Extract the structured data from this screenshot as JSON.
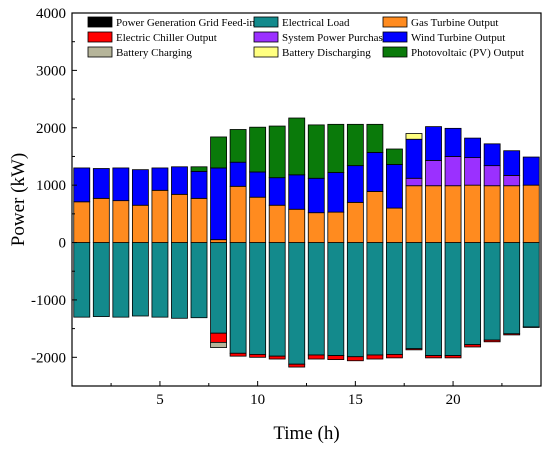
{
  "chart_data": {
    "type": "bar",
    "stacked": true,
    "xlabel": "Time (h)",
    "ylabel": "Power (kW)",
    "xlim": [
      0.5,
      24.5
    ],
    "ylim": [
      -2500,
      4000
    ],
    "x_ticks": [
      5,
      10,
      15,
      20
    ],
    "y_ticks": [
      -2000,
      -1000,
      0,
      1000,
      2000,
      3000,
      4000
    ],
    "x_tick_labels": [
      "5",
      "10",
      "15",
      "20"
    ],
    "y_tick_labels": [
      "-2000",
      "-1000",
      "0",
      "1000",
      "2000",
      "3000",
      "4000"
    ],
    "grid": false,
    "legend_position": "top",
    "x": [
      1,
      2,
      3,
      4,
      5,
      6,
      7,
      8,
      9,
      10,
      11,
      12,
      13,
      14,
      15,
      16,
      17,
      18,
      19,
      20,
      21,
      22,
      23,
      24
    ],
    "series": [
      {
        "name": "Power Generation Grid Feed-in",
        "color": "#000000",
        "values": [
          0,
          0,
          0,
          0,
          0,
          0,
          0,
          0,
          0,
          0,
          0,
          0,
          0,
          0,
          0,
          0,
          0,
          0,
          0,
          0,
          0,
          0,
          0,
          0
        ]
      },
      {
        "name": "Electrical Load",
        "color": "#138A8C",
        "values": [
          -1300,
          -1290,
          -1300,
          -1280,
          -1300,
          -1320,
          -1310,
          -1580,
          -1930,
          -1950,
          -1980,
          -2120,
          -1960,
          -1970,
          -1990,
          -1960,
          -1950,
          -1850,
          -1970,
          -1970,
          -1780,
          -1700,
          -1590,
          -1470
        ]
      },
      {
        "name": "Gas Turbine Output",
        "color": "#FF8B1F",
        "values": [
          710,
          770,
          730,
          650,
          910,
          840,
          770,
          50,
          980,
          790,
          650,
          580,
          520,
          530,
          700,
          890,
          600,
          990,
          990,
          990,
          1000,
          990,
          990,
          1000
        ]
      },
      {
        "name": "Electric Chiller Output",
        "color": "#FF0000",
        "values": [
          0,
          0,
          0,
          0,
          0,
          0,
          0,
          -160,
          -50,
          -50,
          -50,
          -50,
          -70,
          -70,
          -70,
          -70,
          -60,
          -20,
          -40,
          -40,
          -40,
          -30,
          -20,
          -10
        ]
      },
      {
        "name": "System Power Purchase",
        "color": "#9B30FF",
        "values": [
          0,
          0,
          0,
          0,
          0,
          0,
          0,
          0,
          0,
          0,
          0,
          0,
          0,
          0,
          0,
          0,
          0,
          130,
          440,
          510,
          480,
          350,
          180,
          0
        ]
      },
      {
        "name": "Wind Turbine Output",
        "color": "#0000FF",
        "values": [
          590,
          520,
          570,
          620,
          390,
          480,
          470,
          1250,
          420,
          440,
          480,
          600,
          600,
          690,
          640,
          680,
          760,
          680,
          590,
          490,
          340,
          380,
          430,
          490
        ]
      },
      {
        "name": "Battery Charging",
        "color": "#B6B59A",
        "values": [
          0,
          0,
          0,
          0,
          0,
          0,
          0,
          -90,
          0,
          0,
          0,
          0,
          0,
          0,
          0,
          0,
          0,
          0,
          0,
          0,
          0,
          0,
          0,
          0
        ]
      },
      {
        "name": "Battery Discharging",
        "color": "#FFFF80",
        "values": [
          0,
          0,
          0,
          0,
          0,
          0,
          0,
          0,
          0,
          0,
          0,
          0,
          0,
          0,
          0,
          0,
          0,
          100,
          0,
          0,
          0,
          0,
          0,
          0
        ]
      },
      {
        "name": "Photovoltaic (PV) Output",
        "color": "#0A7A0A",
        "values": [
          0,
          0,
          0,
          0,
          0,
          0,
          80,
          540,
          570,
          780,
          900,
          990,
          930,
          840,
          720,
          490,
          270,
          0,
          0,
          0,
          0,
          0,
          0,
          0
        ]
      }
    ]
  }
}
